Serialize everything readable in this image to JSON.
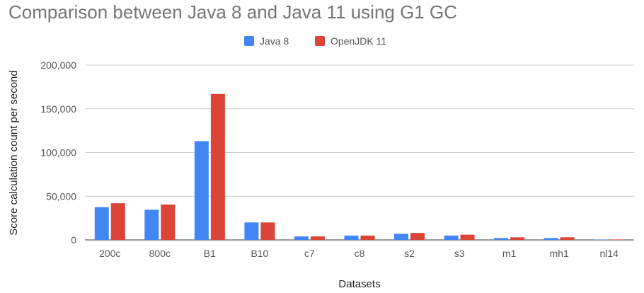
{
  "chart_data": {
    "type": "bar",
    "title": "Comparison between Java 8 and Java 11 using G1 GC",
    "xlabel": "Datasets",
    "ylabel": "Score calculation count per second",
    "ylim": [
      0,
      200000
    ],
    "yticks": [
      0,
      50000,
      100000,
      150000,
      200000
    ],
    "ytick_labels": [
      "0",
      "50,000",
      "100,000",
      "150,000",
      "200,000"
    ],
    "grid": true,
    "legend_position": "top-center",
    "categories": [
      "200c",
      "800c",
      "B1",
      "B10",
      "c7",
      "c8",
      "s2",
      "s3",
      "m1",
      "mh1",
      "nl14"
    ],
    "series": [
      {
        "name": "Java 8",
        "color": "#4285f4",
        "values": [
          37500,
          34500,
          113000,
          20000,
          4000,
          5000,
          7000,
          5000,
          2200,
          2200,
          500
        ]
      },
      {
        "name": "OpenJDK 11",
        "color": "#db4437",
        "values": [
          42000,
          40500,
          167000,
          20000,
          4000,
          5000,
          8000,
          6000,
          3000,
          3000,
          500
        ]
      }
    ]
  }
}
